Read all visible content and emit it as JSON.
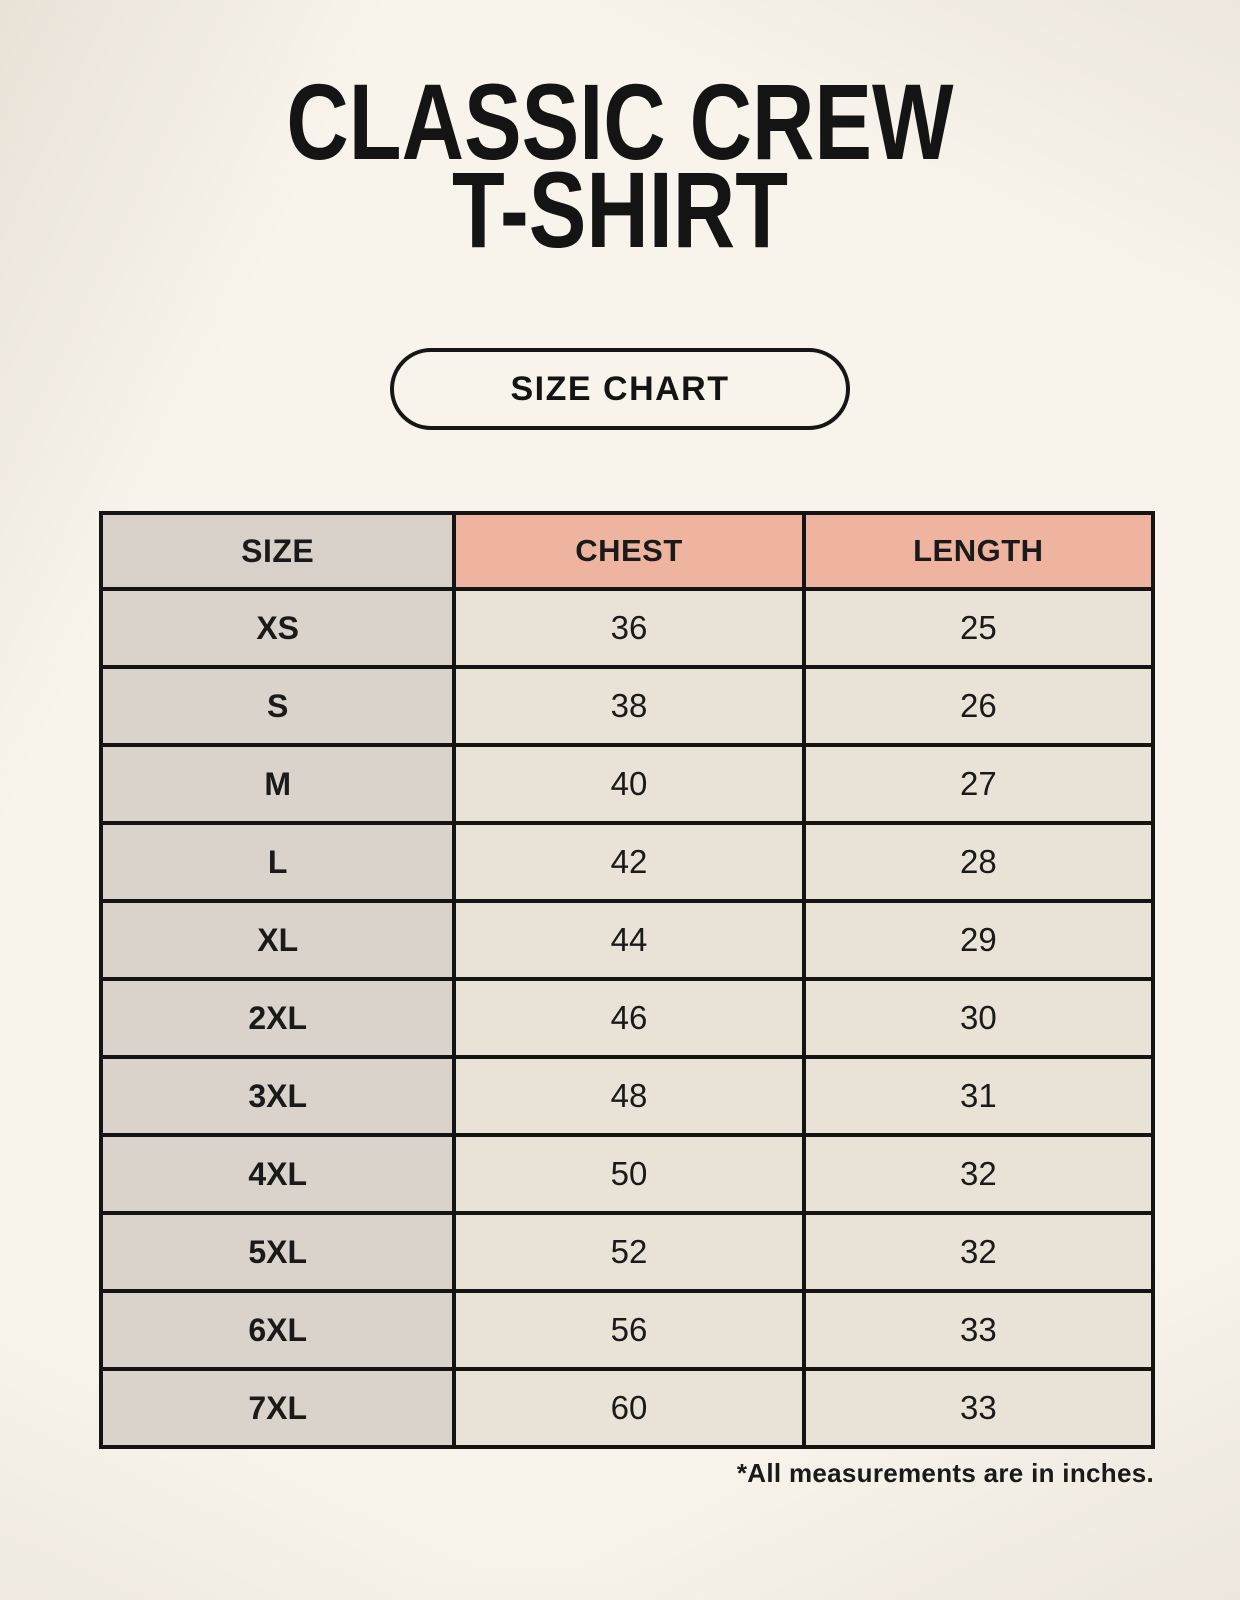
{
  "page": {
    "background_color": "#f8f4ec",
    "text_color": "#1a1a1a",
    "accent_color": "#efb4a0",
    "size_column_color": "#d9d3cc",
    "value_cell_color": "#e9e2d6",
    "border_color": "#141414"
  },
  "header": {
    "title_line1": "CLASSIC CREW",
    "title_line2": "T-SHIRT",
    "size_chart_button_label": "SIZE CHART"
  },
  "size_table": {
    "columns": [
      "SIZE",
      "CHEST",
      "LENGTH"
    ],
    "rows": [
      {
        "size": "XS",
        "chest": "36",
        "length": "25"
      },
      {
        "size": "S",
        "chest": "38",
        "length": "26"
      },
      {
        "size": "M",
        "chest": "40",
        "length": "27"
      },
      {
        "size": "L",
        "chest": "42",
        "length": "28"
      },
      {
        "size": "XL",
        "chest": "44",
        "length": "29"
      },
      {
        "size": "2XL",
        "chest": "46",
        "length": "30"
      },
      {
        "size": "3XL",
        "chest": "48",
        "length": "31"
      },
      {
        "size": "4XL",
        "chest": "50",
        "length": "32"
      },
      {
        "size": "5XL",
        "chest": "52",
        "length": "32"
      },
      {
        "size": "6XL",
        "chest": "56",
        "length": "33"
      },
      {
        "size": "7XL",
        "chest": "60",
        "length": "33"
      }
    ]
  },
  "footnote": "*All measurements are in inches.",
  "chart_data": {
    "type": "table",
    "title": "CLASSIC CREW T-SHIRT — SIZE CHART",
    "columns": [
      "SIZE",
      "CHEST",
      "LENGTH"
    ],
    "units": "inches",
    "rows": [
      [
        "XS",
        36,
        25
      ],
      [
        "S",
        38,
        26
      ],
      [
        "M",
        40,
        27
      ],
      [
        "L",
        42,
        28
      ],
      [
        "XL",
        44,
        29
      ],
      [
        "2XL",
        46,
        30
      ],
      [
        "3XL",
        48,
        31
      ],
      [
        "4XL",
        50,
        32
      ],
      [
        "5XL",
        52,
        32
      ],
      [
        "6XL",
        56,
        33
      ],
      [
        "7XL",
        60,
        33
      ]
    ]
  }
}
